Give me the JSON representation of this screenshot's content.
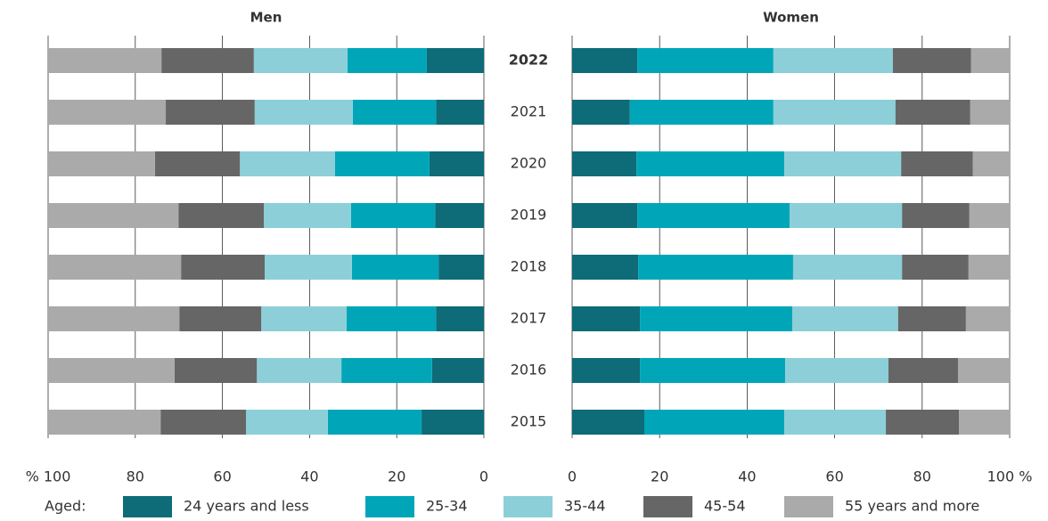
{
  "chart_data": [
    {
      "type": "stacked-barh",
      "title": "Men",
      "legend_title": "Aged:",
      "categories": [
        "2022",
        "2021",
        "2020",
        "2019",
        "2018",
        "2017",
        "2016",
        "2015"
      ],
      "xlim": [
        100,
        0
      ],
      "xticks": [
        {
          "value": 100,
          "label": "% 100"
        },
        80,
        60,
        40,
        20,
        0
      ],
      "grid": true,
      "series": [
        {
          "name": "24 years and less",
          "color": "#0e6b78",
          "values": [
            13.1,
            11.0,
            12.5,
            11.2,
            10.4,
            11.0,
            11.9,
            14.3
          ]
        },
        {
          "name": "25-34",
          "color": "#00a6b8",
          "values": [
            18.2,
            19.1,
            21.7,
            19.3,
            19.9,
            20.5,
            20.8,
            21.5
          ]
        },
        {
          "name": "35-44",
          "color": "#8ccfd8",
          "values": [
            21.5,
            22.5,
            21.8,
            20.0,
            20.0,
            19.6,
            19.4,
            18.8
          ]
        },
        {
          "name": "45-54",
          "color": "#666666",
          "values": [
            21.2,
            20.4,
            19.5,
            19.6,
            19.2,
            18.8,
            18.9,
            19.6
          ]
        },
        {
          "name": "55 years and more",
          "color": "#aaaaaa",
          "values": [
            26.0,
            27.0,
            24.5,
            29.9,
            30.5,
            30.1,
            29.0,
            25.8
          ]
        }
      ]
    },
    {
      "type": "stacked-barh",
      "title": "Women",
      "xlim": [
        0,
        100
      ],
      "xticks": [
        0,
        20,
        40,
        60,
        80,
        {
          "value": 100,
          "label": "100 %"
        }
      ],
      "grid": true,
      "series": [
        {
          "name": "24 years and less",
          "color": "#0e6b78",
          "values": [
            14.9,
            13.2,
            14.7,
            14.9,
            15.1,
            15.5,
            15.5,
            16.5
          ]
        },
        {
          "name": "25-34",
          "color": "#00a6b8",
          "values": [
            31.1,
            32.8,
            33.8,
            34.8,
            35.4,
            34.8,
            33.2,
            32.0
          ]
        },
        {
          "name": "35-44",
          "color": "#8ccfd8",
          "values": [
            27.3,
            27.9,
            26.7,
            25.7,
            24.9,
            24.2,
            23.6,
            23.2
          ]
        },
        {
          "name": "45-54",
          "color": "#666666",
          "values": [
            17.9,
            17.1,
            16.4,
            15.4,
            15.2,
            15.5,
            15.9,
            16.7
          ]
        },
        {
          "name": "55 years and more",
          "color": "#aaaaaa",
          "values": [
            8.8,
            9.0,
            8.4,
            9.2,
            9.4,
            10.0,
            11.8,
            11.6
          ]
        }
      ]
    }
  ]
}
